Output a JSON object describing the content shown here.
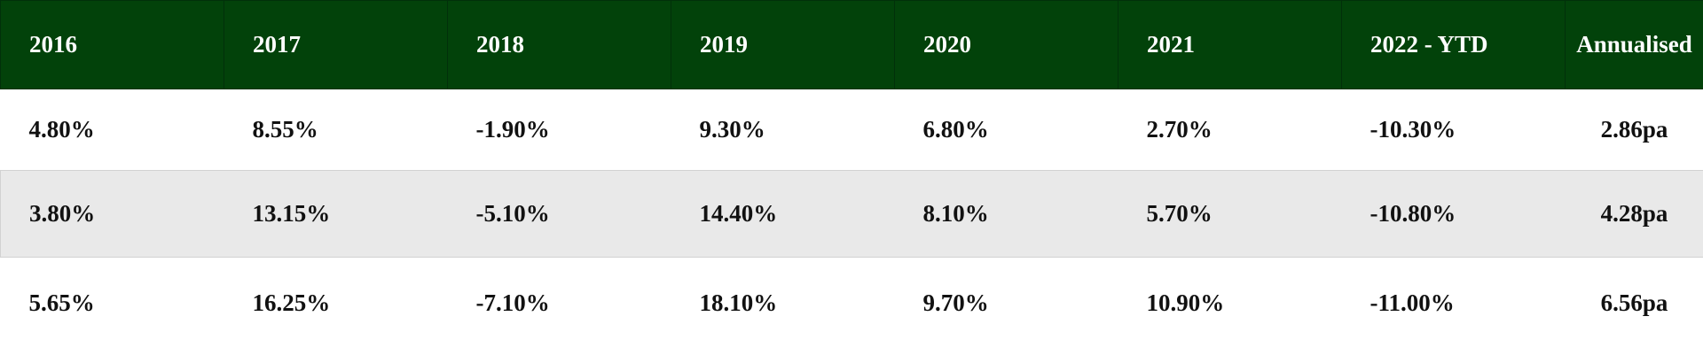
{
  "table": {
    "header": [
      "2016",
      "2017",
      "2018",
      "2019",
      "2020",
      "2021",
      "2022 - YTD",
      "Annualised"
    ],
    "rows": [
      [
        "4.80%",
        "8.55%",
        "-1.90%",
        "9.30%",
        "6.80%",
        "2.70%",
        "-10.30%",
        "2.86pa"
      ],
      [
        "3.80%",
        "13.15%",
        "-5.10%",
        "14.40%",
        "8.10%",
        "5.70%",
        "-10.80%",
        "4.28pa"
      ],
      [
        "5.65%",
        "16.25%",
        "-7.10%",
        "18.10%",
        "9.70%",
        "10.90%",
        "-11.00%",
        "6.56pa"
      ]
    ]
  }
}
